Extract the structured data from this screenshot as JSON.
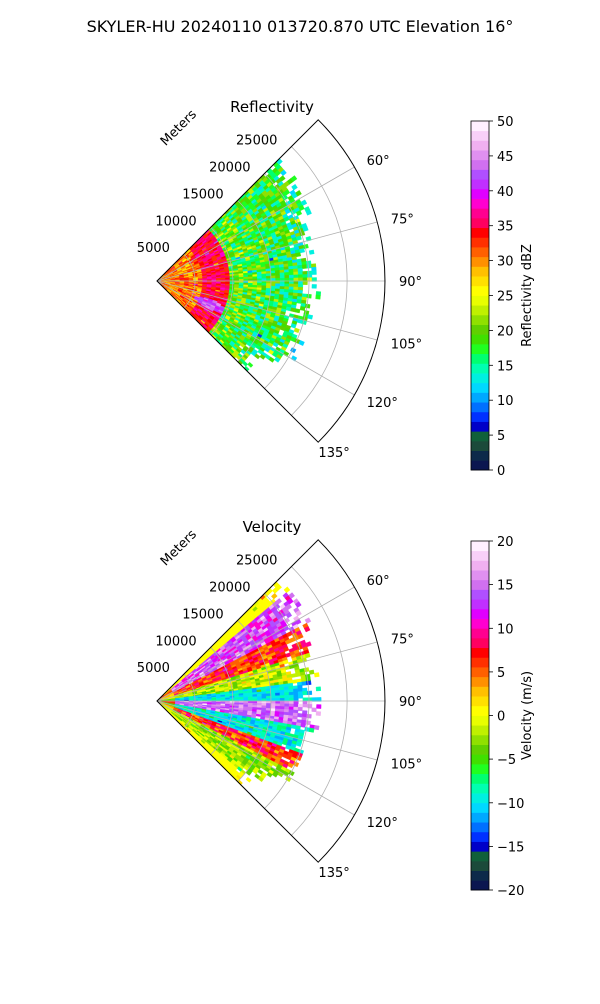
{
  "figure": {
    "suptitle": "SKYLER-HU  20240110  013720.870 UTC Elevation 16°"
  },
  "chart_data": [
    {
      "type": "heatmap",
      "title": "Reflectivity",
      "projection": "polar sector",
      "theta_range_deg": [
        45,
        135
      ],
      "theta_ticks": [
        "60°",
        "75°",
        "90°",
        "105°",
        "120°",
        "135°"
      ],
      "radial_label": "Meters",
      "r_ticks": [
        "5000",
        "10000",
        "15000",
        "20000",
        "25000"
      ],
      "r_max": 30000,
      "grid": true,
      "colorbar": {
        "label": "Reflectivity dBZ",
        "range": [
          0,
          50
        ],
        "ticks": [
          "0",
          "5",
          "10",
          "15",
          "20",
          "25",
          "30",
          "35",
          "40",
          "45",
          "50"
        ],
        "colors": [
          "#0b1650",
          "#0d2a4a",
          "#1b4a3a",
          "#10603a",
          "#0000c8",
          "#0030ff",
          "#0070ff",
          "#00a8ff",
          "#00d8ff",
          "#00f0e0",
          "#00ffb0",
          "#00ff70",
          "#20ff20",
          "#40e000",
          "#60d000",
          "#90e000",
          "#c0f000",
          "#e8ff00",
          "#ffff00",
          "#ffe000",
          "#ffc000",
          "#ff9000",
          "#ff6000",
          "#ff3000",
          "#ff0000",
          "#ff0060",
          "#ff0090",
          "#ff00d0",
          "#e000ff",
          "#c030ff",
          "#b050ff",
          "#d070f0",
          "#e090f0",
          "#f0b0f0",
          "#f8d0f8",
          "#fff0ff"
        ]
      },
      "data_extent": {
        "r_max_by_angle": [
          [
            52,
            22000
          ],
          [
            60,
            22000
          ],
          [
            75,
            20000
          ],
          [
            90,
            21000
          ],
          [
            105,
            20000
          ],
          [
            120,
            20000
          ],
          [
            128,
            16000
          ]
        ]
      },
      "structure": [
        {
          "description_values": "core",
          "r_range": [
            0,
            6000
          ],
          "dbz": [
            28,
            35
          ]
        },
        {
          "description_values": "ring",
          "r_range": [
            6000,
            9500
          ],
          "dbz": [
            33,
            37
          ]
        },
        {
          "description_values": "outer",
          "r_range": [
            9500,
            21000
          ],
          "dbz": [
            15,
            25
          ]
        },
        {
          "description_values": "spot",
          "theta": 114,
          "r": 7500,
          "dbz": [
            40,
            45
          ]
        }
      ]
    },
    {
      "type": "heatmap",
      "title": "Velocity",
      "projection": "polar sector",
      "theta_range_deg": [
        45,
        135
      ],
      "theta_ticks": [
        "60°",
        "75°",
        "90°",
        "105°",
        "120°",
        "135°"
      ],
      "radial_label": "Meters",
      "r_ticks": [
        "5000",
        "10000",
        "15000",
        "20000",
        "25000"
      ],
      "r_max": 30000,
      "grid": true,
      "colorbar": {
        "label": "Velocity (m/s)",
        "range": [
          -20,
          20
        ],
        "ticks": [
          "−20",
          "−15",
          "−10",
          "−5",
          "0",
          "5",
          "10",
          "15",
          "20"
        ],
        "colors": [
          "#0b1650",
          "#0d2a4a",
          "#1b4a3a",
          "#10603a",
          "#0000c8",
          "#0030ff",
          "#0070ff",
          "#00a8ff",
          "#00d8ff",
          "#00f0e0",
          "#00ffb0",
          "#00ff70",
          "#20ff20",
          "#40e000",
          "#60d000",
          "#90e000",
          "#c0f000",
          "#e8ff00",
          "#ffff00",
          "#ffe000",
          "#ffc000",
          "#ff9000",
          "#ff6000",
          "#ff3000",
          "#ff0000",
          "#ff0060",
          "#ff0090",
          "#ff00d0",
          "#e000ff",
          "#c030ff",
          "#b050ff",
          "#d070f0",
          "#e090f0",
          "#f0b0f0",
          "#f8d0f8",
          "#fff0ff"
        ]
      },
      "data_extent": {
        "r_max_by_angle": [
          [
            52,
            22000
          ],
          [
            60,
            22000
          ],
          [
            75,
            20000
          ],
          [
            90,
            21000
          ],
          [
            105,
            20000
          ],
          [
            120,
            20000
          ],
          [
            128,
            16000
          ]
        ]
      },
      "structure": [
        {
          "theta_range": [
            50,
            62
          ],
          "velocity": [
            10,
            18
          ]
        },
        {
          "theta_range": [
            62,
            72
          ],
          "velocity": [
            3,
            10
          ]
        },
        {
          "theta_range": [
            72,
            82
          ],
          "velocity": [
            -5,
            2
          ]
        },
        {
          "theta_range": [
            82,
            90
          ],
          "velocity": [
            -12,
            -8
          ]
        },
        {
          "theta_range": [
            90,
            100
          ],
          "velocity": [
            12,
            18
          ]
        },
        {
          "theta_range": [
            100,
            110
          ],
          "velocity": [
            -12,
            -7
          ]
        },
        {
          "theta_range": [
            110,
            118
          ],
          "velocity": [
            3,
            10
          ]
        },
        {
          "theta_range": [
            118,
            130
          ],
          "velocity": [
            -5,
            0
          ]
        }
      ]
    }
  ]
}
